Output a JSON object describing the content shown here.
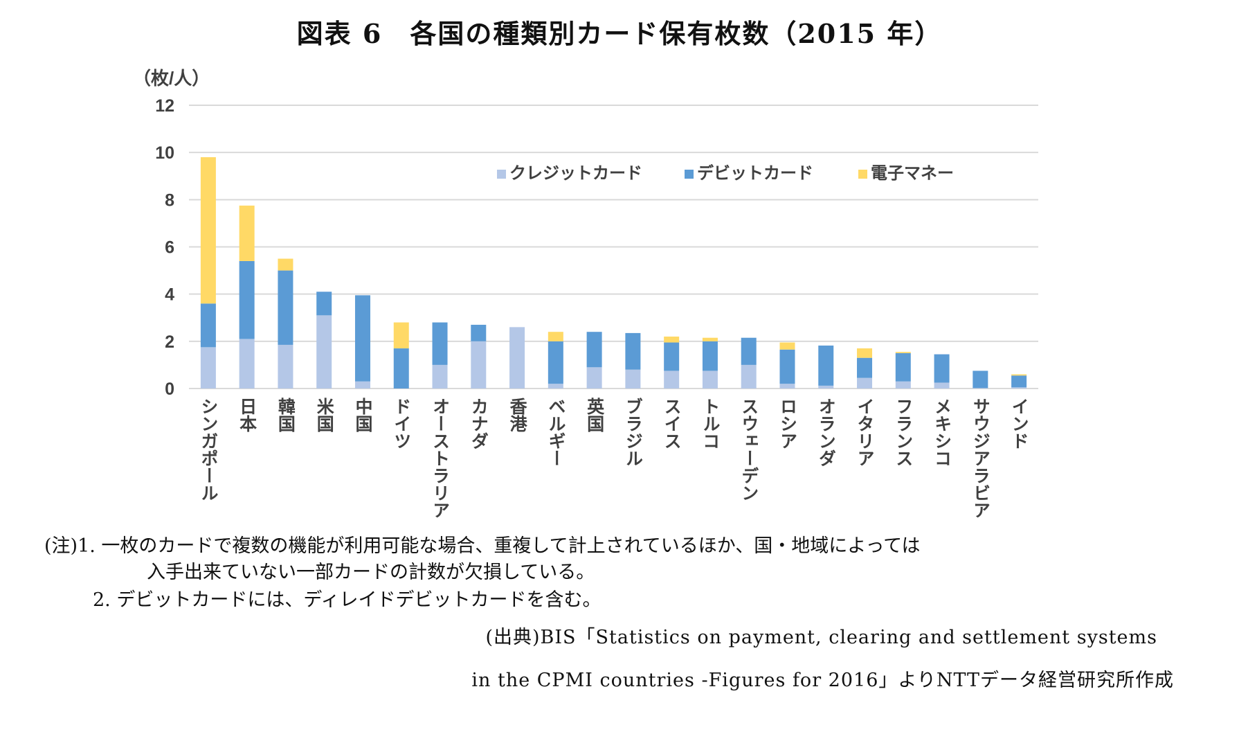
{
  "title": "図表 6　各国の種類別カード保有枚数（2015 年）",
  "notes": {
    "note1_line1": "(注)1. 一枚のカードで複数の機能が利用可能な場合、重複して計上されているほか、国・地域によっては",
    "note1_line2": "入手出来ていない一部カードの計数が欠損している。",
    "note2": "2. デビットカードには、ディレイドデビットカードを含む。"
  },
  "source": {
    "line1": "(出典)BIS「Statistics on payment, clearing and settlement systems",
    "line2": "in the CPMI countries -Figures for 2016」よりNTTデータ経営研究所作成"
  },
  "chart_data": {
    "type": "bar",
    "stacked": true,
    "ylabel": "（枚/人）",
    "xlabel": "",
    "ylim": [
      0,
      12
    ],
    "yticks": [
      0,
      2,
      4,
      6,
      8,
      10,
      12
    ],
    "grid": true,
    "legend_position": "top",
    "categories": [
      "シンガポール",
      "日本",
      "韓国",
      "米国",
      "中国",
      "ドイツ",
      "オーストラリア",
      "カナダ",
      "香港",
      "ベルギー",
      "英国",
      "ブラジル",
      "スイス",
      "トルコ",
      "スウェーデン",
      "ロシア",
      "オランダ",
      "イタリア",
      "フランス",
      "メキシコ",
      "サウジアラビア",
      "インド"
    ],
    "series": [
      {
        "name": "クレジットカード",
        "color": "#b4c7e7",
        "values": [
          1.75,
          2.1,
          1.85,
          3.1,
          0.3,
          0.0,
          1.0,
          2.0,
          2.6,
          0.2,
          0.9,
          0.8,
          0.75,
          0.75,
          1.0,
          0.2,
          0.12,
          0.45,
          0.3,
          0.25,
          0.02,
          0.05
        ]
      },
      {
        "name": "デビットカード",
        "color": "#5b9bd5",
        "values": [
          1.85,
          3.3,
          3.15,
          1.0,
          3.65,
          1.7,
          1.8,
          0.7,
          0.0,
          1.8,
          1.5,
          1.55,
          1.2,
          1.25,
          1.15,
          1.45,
          1.7,
          0.85,
          1.2,
          1.2,
          0.73,
          0.5
        ]
      },
      {
        "name": "電子マネー",
        "color": "#ffd966",
        "values": [
          6.2,
          2.35,
          0.5,
          0.0,
          0.0,
          1.1,
          0.0,
          0.0,
          0.0,
          0.4,
          0.0,
          0.0,
          0.25,
          0.15,
          0.0,
          0.3,
          0.0,
          0.4,
          0.05,
          0.0,
          0.0,
          0.05
        ]
      }
    ]
  }
}
